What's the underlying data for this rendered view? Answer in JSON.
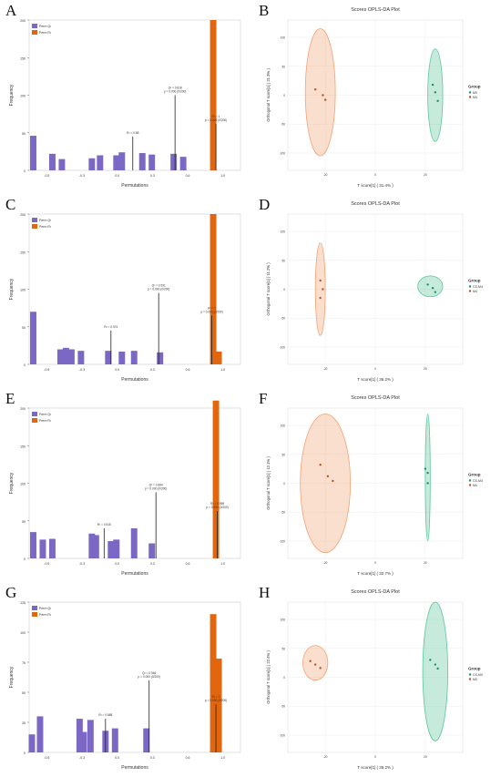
{
  "colors": {
    "q2": "#7b68c4",
    "r2": "#e2660d",
    "ellipse_orange": "#f2a273",
    "ellipse_green": "#5cc79b",
    "stem": "#222222"
  },
  "chart_data": [
    {
      "letter": "A",
      "type": "bar",
      "xlabel": "Permutations",
      "ylabel": "Frequency",
      "legend": [
        "Perm Q²",
        "Perm R²"
      ],
      "legend_position": "top-left",
      "xlim": [
        -0.5,
        1.05
      ],
      "ylim": [
        0,
        200
      ],
      "yticks": [
        0,
        50,
        100,
        150,
        200
      ],
      "xticks": [
        "-0.5",
        "-0.3",
        "0.0",
        "0.3",
        "0.6",
        "1.0"
      ],
      "q2_bars": [
        [
          -0.47,
          46
        ],
        [
          -0.33,
          22
        ],
        [
          -0.26,
          15
        ],
        [
          -0.04,
          16
        ],
        [
          0.02,
          20
        ],
        [
          0.14,
          20
        ],
        [
          0.18,
          24
        ],
        [
          0.33,
          23
        ],
        [
          0.4,
          21
        ],
        [
          0.56,
          22
        ],
        [
          0.63,
          18
        ]
      ],
      "r2_bars": [
        [
          0.85,
          200
        ]
      ],
      "stems": [
        {
          "x": 0.26,
          "y": 45,
          "label": "R² = 0.88"
        },
        {
          "x": 0.57,
          "y": 100,
          "label": "Q² = 0.818\np = 0.000 (0/200)"
        },
        {
          "x": 0.87,
          "y": 62,
          "label": "R² = 1\np = 0.000 (0/200)"
        }
      ]
    },
    {
      "letter": "B",
      "type": "scatter",
      "title": "Scores OPLS-DA Plot",
      "xlabel": "T score[1] ( 31.4% )",
      "ylabel": "Orthogonal T score[1] ( 21.3% )",
      "legend_title": "Group",
      "legend": [
        "M0",
        "M4"
      ],
      "legend_position": "right",
      "ellipses": [
        {
          "cx": -22,
          "cy": 5,
          "rx": 6,
          "ry": 110,
          "group": "M4"
        },
        {
          "cx": 24,
          "cy": 0,
          "rx": 3,
          "ry": 80,
          "group": "M0"
        }
      ],
      "points": [
        {
          "x": -24,
          "y": 10,
          "group": "M4"
        },
        {
          "x": -21,
          "y": 0,
          "group": "M4"
        },
        {
          "x": -20,
          "y": -8,
          "group": "M4"
        },
        {
          "x": 23,
          "y": 18,
          "group": "M0"
        },
        {
          "x": 24,
          "y": 5,
          "group": "M0"
        },
        {
          "x": 25,
          "y": -10,
          "group": "M0"
        }
      ]
    },
    {
      "letter": "C",
      "type": "bar",
      "xlabel": "Permutations",
      "ylabel": "Frequency",
      "legend": [
        "Perm Q²",
        "Perm R²"
      ],
      "legend_position": "top-left",
      "xlim": [
        -0.5,
        1.05
      ],
      "ylim": [
        0,
        200
      ],
      "yticks": [
        0,
        50,
        100,
        150,
        200
      ],
      "xticks": [
        "-0.5",
        "-0.3",
        "0.0",
        "0.3",
        "0.6",
        "1.0"
      ],
      "q2_bars": [
        [
          -0.47,
          70
        ],
        [
          -0.27,
          20
        ],
        [
          -0.23,
          22
        ],
        [
          -0.19,
          20
        ],
        [
          -0.12,
          18
        ],
        [
          0.08,
          18
        ],
        [
          0.18,
          17
        ],
        [
          0.27,
          18
        ],
        [
          0.46,
          16
        ]
      ],
      "r2_bars": [
        [
          0.85,
          200
        ],
        [
          0.89,
          17
        ]
      ],
      "stems": [
        {
          "x": 0.1,
          "y": 45,
          "label": "R² = 0.974"
        },
        {
          "x": 0.45,
          "y": 95,
          "label": "Q² = 0.931\np = 0.000 (0/200)"
        },
        {
          "x": 0.84,
          "y": 65,
          "label": "R² = 1\np = 0.000 (0/200)"
        }
      ]
    },
    {
      "letter": "D",
      "type": "scatter",
      "title": "Scores OPLS-DA Plot",
      "xlabel": "T score[1] ( 36.2% )",
      "ylabel": "Orthogonal T score[1] ( 11.2% )",
      "legend_title": "Group",
      "legend": [
        "CS-M4",
        "M4"
      ],
      "legend_position": "right",
      "ellipses": [
        {
          "cx": -22,
          "cy": 0,
          "rx": 2,
          "ry": 80,
          "group": "M4"
        },
        {
          "cx": 22,
          "cy": 5,
          "rx": 5,
          "ry": 18,
          "group": "CS-M4"
        }
      ],
      "points": [
        {
          "x": -22,
          "y": 15,
          "group": "M4"
        },
        {
          "x": -21,
          "y": 0,
          "group": "M4"
        },
        {
          "x": -22,
          "y": -15,
          "group": "M4"
        },
        {
          "x": 21,
          "y": 8,
          "group": "CS-M4"
        },
        {
          "x": 23,
          "y": 2,
          "group": "CS-M4"
        },
        {
          "x": 24,
          "y": -5,
          "group": "CS-M4"
        }
      ]
    },
    {
      "letter": "E",
      "type": "bar",
      "xlabel": "Permutations",
      "ylabel": "Frequency",
      "legend": [
        "Perm Q²",
        "Perm R²"
      ],
      "legend_position": "top-left",
      "xlim": [
        -0.5,
        1.05
      ],
      "ylim": [
        0,
        200
      ],
      "yticks": [
        0,
        50,
        100,
        150,
        200
      ],
      "xticks": [
        "-0.5",
        "-0.3",
        "0.0",
        "0.3",
        "0.6",
        "1.0"
      ],
      "q2_bars": [
        [
          -0.47,
          35
        ],
        [
          -0.4,
          25
        ],
        [
          -0.33,
          26
        ],
        [
          -0.04,
          33
        ],
        [
          -0.01,
          31
        ],
        [
          0.1,
          23
        ],
        [
          0.14,
          25
        ],
        [
          0.27,
          40
        ],
        [
          0.4,
          20
        ]
      ],
      "r2_bars": [
        [
          0.87,
          210
        ]
      ],
      "stems": [
        {
          "x": 0.05,
          "y": 40,
          "label": "R² = 0.915"
        },
        {
          "x": 0.43,
          "y": 88,
          "label": "Q² = 0.894\np = 0.000 (0/200)"
        },
        {
          "x": 0.88,
          "y": 63,
          "label": "R² = 0.998\np = 0.000 (0/200)"
        }
      ]
    },
    {
      "letter": "F",
      "type": "scatter",
      "title": "Scores OPLS-DA Plot",
      "xlabel": "T score[1] ( 32.7% )",
      "ylabel": "Orthogonal T score[1] ( 12.1% )",
      "legend_title": "Group",
      "legend": [
        "CS-M4",
        "M4"
      ],
      "legend_position": "right",
      "ellipses": [
        {
          "cx": -20,
          "cy": 0,
          "rx": 10,
          "ry": 120,
          "group": "M4"
        },
        {
          "cx": 21,
          "cy": 10,
          "rx": 1,
          "ry": 110,
          "group": "CS-M4"
        }
      ],
      "points": [
        {
          "x": -22,
          "y": 32,
          "group": "M4"
        },
        {
          "x": -19,
          "y": 12,
          "group": "M4"
        },
        {
          "x": -17,
          "y": 4,
          "group": "M4"
        },
        {
          "x": 20,
          "y": 25,
          "group": "CS-M4"
        },
        {
          "x": 21,
          "y": 18,
          "group": "CS-M4"
        },
        {
          "x": 21,
          "y": 0,
          "group": "CS-M4"
        }
      ]
    },
    {
      "letter": "G",
      "type": "bar",
      "xlabel": "Permutations",
      "ylabel": "Frequency",
      "legend": [
        "Perm Q²",
        "Perm R²"
      ],
      "legend_position": "top-left",
      "xlim": [
        -0.5,
        1.05
      ],
      "ylim": [
        0,
        125
      ],
      "yticks": [
        0,
        25,
        50,
        75,
        100,
        125
      ],
      "xticks": [
        "-0.5",
        "-0.3",
        "0.0",
        "0.3",
        "0.6",
        "1.0"
      ],
      "q2_bars": [
        [
          -0.48,
          15
        ],
        [
          -0.42,
          30
        ],
        [
          -0.13,
          28
        ],
        [
          -0.1,
          17
        ],
        [
          -0.05,
          27
        ],
        [
          0.06,
          18
        ],
        [
          0.13,
          20
        ],
        [
          0.36,
          20
        ]
      ],
      "r2_bars": [
        [
          0.85,
          115
        ],
        [
          0.89,
          78
        ]
      ],
      "stems": [
        {
          "x": 0.06,
          "y": 28,
          "label": "R² = 0.888"
        },
        {
          "x": 0.38,
          "y": 60,
          "label": "Q² = 0.946\np = 0.000 (0/200)"
        },
        {
          "x": 0.87,
          "y": 40,
          "label": "R² = 1\np = 0.000 (0/200)"
        }
      ]
    },
    {
      "letter": "H",
      "type": "scatter",
      "title": "Scores OPLS-DA Plot",
      "xlabel": "T score[1] ( 35.2% )",
      "ylabel": "Orthogonal T score[1] ( 22.4% )",
      "legend_title": "Group",
      "legend": [
        "CS-M0",
        "M0"
      ],
      "legend_position": "right",
      "ellipses": [
        {
          "cx": -24,
          "cy": 25,
          "rx": 5,
          "ry": 30,
          "group": "M0"
        },
        {
          "cx": 24,
          "cy": 10,
          "rx": 5,
          "ry": 120,
          "group": "CS-M0"
        }
      ],
      "points": [
        {
          "x": -26,
          "y": 28,
          "group": "M0"
        },
        {
          "x": -24,
          "y": 22,
          "group": "M0"
        },
        {
          "x": -22,
          "y": 16,
          "group": "M0"
        },
        {
          "x": 22,
          "y": 30,
          "group": "CS-M0"
        },
        {
          "x": 24,
          "y": 22,
          "group": "CS-M0"
        },
        {
          "x": 25,
          "y": 15,
          "group": "CS-M0"
        }
      ]
    }
  ]
}
